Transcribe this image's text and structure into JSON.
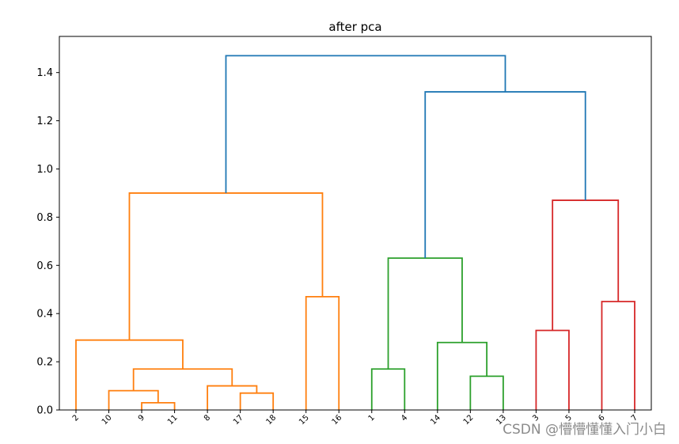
{
  "chart_data": {
    "type": "dendrogram",
    "title": "after pca",
    "ylim": [
      0,
      1.55
    ],
    "yticks": [
      "0.0",
      "0.2",
      "0.4",
      "0.6",
      "0.8",
      "1.0",
      "1.2",
      "1.4"
    ],
    "leaves": [
      "2",
      "10",
      "9",
      "11",
      "8",
      "17",
      "18",
      "15",
      "16",
      "1",
      "4",
      "14",
      "12",
      "13",
      "3",
      "5",
      "6",
      "7"
    ],
    "links": [
      {
        "left_leaf": "9",
        "right_leaf": "11",
        "height": 0.03,
        "color": "#ff7f0e"
      },
      {
        "left_leaf": "17",
        "right_leaf": "18",
        "height": 0.07,
        "color": "#ff7f0e"
      },
      {
        "left_leaf": "10",
        "right_cluster": [
          "9",
          "11"
        ],
        "height": 0.08,
        "color": "#ff7f0e"
      },
      {
        "left_leaf": "8",
        "right_cluster": [
          "17",
          "18"
        ],
        "height": 0.1,
        "color": "#ff7f0e"
      },
      {
        "cluster_a": [
          "10",
          "9",
          "11"
        ],
        "cluster_b": [
          "8",
          "17",
          "18"
        ],
        "height": 0.17,
        "color": "#ff7f0e"
      },
      {
        "left_leaf": "2",
        "right_cluster": [
          "10",
          "9",
          "11",
          "8",
          "17",
          "18"
        ],
        "height": 0.29,
        "color": "#ff7f0e"
      },
      {
        "left_leaf": "15",
        "right_leaf": "16",
        "height": 0.47,
        "color": "#ff7f0e"
      },
      {
        "cluster_a": [
          "2",
          "10",
          "9",
          "11",
          "8",
          "17",
          "18"
        ],
        "cluster_b": [
          "15",
          "16"
        ],
        "height": 0.9,
        "color": "#ff7f0e"
      },
      {
        "left_leaf": "1",
        "right_leaf": "4",
        "height": 0.17,
        "color": "#2ca02c"
      },
      {
        "left_leaf": "12",
        "right_leaf": "13",
        "height": 0.14,
        "color": "#2ca02c"
      },
      {
        "left_leaf": "14",
        "right_cluster": [
          "12",
          "13"
        ],
        "height": 0.28,
        "color": "#2ca02c"
      },
      {
        "cluster_a": [
          "1",
          "4"
        ],
        "cluster_b": [
          "14",
          "12",
          "13"
        ],
        "height": 0.63,
        "color": "#2ca02c"
      },
      {
        "left_leaf": "3",
        "right_leaf": "5",
        "height": 0.33,
        "color": "#d62728"
      },
      {
        "left_leaf": "6",
        "right_leaf": "7",
        "height": 0.45,
        "color": "#d62728"
      },
      {
        "cluster_a": [
          "3",
          "5"
        ],
        "cluster_b": [
          "6",
          "7"
        ],
        "height": 0.87,
        "color": "#d62728"
      },
      {
        "cluster_a": [
          "1",
          "4",
          "14",
          "12",
          "13"
        ],
        "cluster_b": [
          "3",
          "5",
          "6",
          "7"
        ],
        "height": 1.32,
        "color": "#1f77b4"
      },
      {
        "cluster_a": [
          "2",
          "10",
          "9",
          "11",
          "8",
          "17",
          "18",
          "15",
          "16"
        ],
        "cluster_b": [
          "1",
          "4",
          "14",
          "12",
          "13",
          "3",
          "5",
          "6",
          "7"
        ],
        "height": 1.47,
        "color": "#1f77b4"
      }
    ],
    "grid": false
  },
  "watermark": "CSDN @懵懵懂懂入门小白"
}
